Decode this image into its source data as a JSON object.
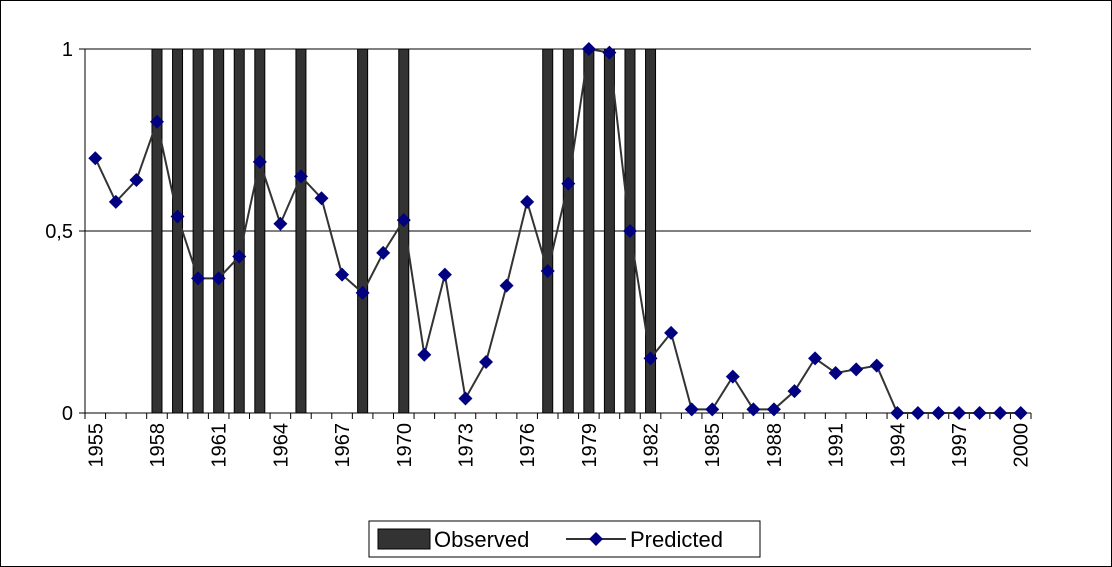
{
  "chart_data": {
    "type": "bar+line",
    "x": [
      1955,
      1956,
      1957,
      1958,
      1959,
      1960,
      1961,
      1962,
      1963,
      1964,
      1965,
      1966,
      1967,
      1968,
      1969,
      1970,
      1971,
      1972,
      1973,
      1974,
      1975,
      1976,
      1977,
      1978,
      1979,
      1980,
      1981,
      1982,
      1983,
      1984,
      1985,
      1986,
      1987,
      1988,
      1989,
      1990,
      1991,
      1992,
      1993,
      1994,
      1995,
      1996,
      1997,
      1998,
      1999,
      2000
    ],
    "x_tick_labels": [
      "1955",
      "1958",
      "1961",
      "1964",
      "1967",
      "1970",
      "1973",
      "1976",
      "1979",
      "1982",
      "1985",
      "1988",
      "1991",
      "1994",
      "1997",
      "2000"
    ],
    "y_tick_labels": [
      "0",
      "0,5",
      "1"
    ],
    "y_ticks": [
      0,
      0.5,
      1
    ],
    "ylim": [
      0,
      1
    ],
    "grid": "horizontal",
    "legend_position": "bottom",
    "series": [
      {
        "name": "Observed",
        "type": "bar",
        "color": "#333333",
        "values": [
          0,
          0,
          0,
          1,
          1,
          1,
          1,
          1,
          1,
          0,
          1,
          0,
          0,
          1,
          0,
          1,
          0,
          0,
          0,
          0,
          0,
          0,
          1,
          1,
          1,
          1,
          1,
          1,
          0,
          0,
          0,
          0,
          0,
          0,
          0,
          0,
          0,
          0,
          0,
          0,
          0,
          0,
          0,
          0,
          0,
          0
        ]
      },
      {
        "name": "Predicted",
        "type": "line",
        "color": "#000080",
        "line_color": "#333333",
        "values": [
          0.7,
          0.58,
          0.64,
          0.8,
          0.54,
          0.37,
          0.37,
          0.43,
          0.69,
          0.52,
          0.65,
          0.59,
          0.38,
          0.33,
          0.44,
          0.53,
          0.16,
          0.38,
          0.04,
          0.14,
          0.35,
          0.58,
          0.39,
          0.63,
          1.0,
          0.99,
          0.5,
          0.15,
          0.22,
          0.01,
          0.01,
          0.1,
          0.01,
          0.01,
          0.06,
          0.15,
          0.11,
          0.12,
          0.13,
          0.0,
          0.0,
          0.0,
          0.0,
          0.0,
          0.0,
          0.0
        ]
      }
    ]
  }
}
